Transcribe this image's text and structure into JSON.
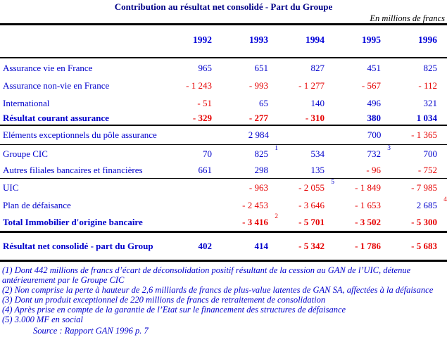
{
  "title": "Contribution au résultat net consolidé - Part du Groupe",
  "unit_label": "En millions de francs",
  "colors": {
    "title": "#000087",
    "blue": "#0000CC",
    "red": "#E60000",
    "year_blue": "#0000D9",
    "rule": "#000000"
  },
  "table": {
    "years": [
      "1992",
      "1993",
      "1994",
      "1995",
      "1996"
    ],
    "rows": [
      {
        "label": "Assurance vie en France",
        "bold": false,
        "cells": [
          {
            "v": "965",
            "c": "pos"
          },
          {
            "v": "651",
            "c": "pos"
          },
          {
            "v": "827",
            "c": "pos"
          },
          {
            "v": "451",
            "c": "pos"
          },
          {
            "v": "825",
            "c": "pos"
          }
        ]
      },
      {
        "label": "Assurance non-vie en France",
        "bold": false,
        "cells": [
          {
            "v": "- 1 243",
            "c": "neg"
          },
          {
            "v": "- 993",
            "c": "neg"
          },
          {
            "v": "- 1 277",
            "c": "neg"
          },
          {
            "v": "- 567",
            "c": "neg"
          },
          {
            "v": "- 112",
            "c": "neg"
          }
        ]
      },
      {
        "label": "International",
        "bold": false,
        "cells": [
          {
            "v": "- 51",
            "c": "neg"
          },
          {
            "v": "65",
            "c": "pos"
          },
          {
            "v": "140",
            "c": "pos"
          },
          {
            "v": "496",
            "c": "pos"
          },
          {
            "v": "321",
            "c": "pos"
          }
        ]
      },
      {
        "label": "Résultat courant assurance",
        "bold": true,
        "divider_after": "medium",
        "cells": [
          {
            "v": "- 329",
            "c": "neg"
          },
          {
            "v": "- 277",
            "c": "neg"
          },
          {
            "v": "- 310",
            "c": "neg"
          },
          {
            "v": "380",
            "c": "pos"
          },
          {
            "v": "1 034",
            "c": "pos"
          }
        ]
      },
      {
        "label": "Eléments exceptionnels du pôle assurance",
        "bold": false,
        "divider_after": "thin",
        "cells": [
          {
            "v": "",
            "c": "pos"
          },
          {
            "v": "2 984",
            "c": "pos"
          },
          {
            "v": "",
            "c": "pos"
          },
          {
            "v": "700",
            "c": "pos"
          },
          {
            "v": "- 1 365",
            "c": "neg"
          }
        ]
      },
      {
        "label": "Groupe CIC",
        "bold": false,
        "cells": [
          {
            "v": "70",
            "c": "pos"
          },
          {
            "v": "825",
            "c": "pos",
            "sup": "1",
            "supc": "pos"
          },
          {
            "v": "534",
            "c": "pos"
          },
          {
            "v": "732",
            "c": "pos",
            "sup": "3",
            "supc": "pos"
          },
          {
            "v": "700",
            "c": "pos"
          }
        ]
      },
      {
        "label": "Autres filiales bancaires et financières",
        "bold": false,
        "divider_after": "thin",
        "cells": [
          {
            "v": "661",
            "c": "pos"
          },
          {
            "v": "298",
            "c": "pos"
          },
          {
            "v": "135",
            "c": "pos"
          },
          {
            "v": "- 96",
            "c": "neg"
          },
          {
            "v": "- 752",
            "c": "neg"
          }
        ]
      },
      {
        "label": "UIC",
        "bold": false,
        "cells": [
          {
            "v": "",
            "c": "pos"
          },
          {
            "v": "- 963",
            "c": "neg"
          },
          {
            "v": "- 2 055",
            "c": "neg",
            "sup": "5",
            "supc": "pos"
          },
          {
            "v": "- 1 849",
            "c": "neg"
          },
          {
            "v": "- 7 985",
            "c": "neg"
          }
        ]
      },
      {
        "label": "Plan de défaisance",
        "bold": false,
        "cells": [
          {
            "v": "",
            "c": "pos"
          },
          {
            "v": "- 2 453",
            "c": "neg"
          },
          {
            "v": "- 3 646",
            "c": "neg"
          },
          {
            "v": "- 1 653",
            "c": "neg"
          },
          {
            "v": "2 685",
            "c": "pos",
            "sup": "4",
            "supc": "neg"
          }
        ]
      },
      {
        "label": "Total Immobilier d'origine bancaire",
        "bold": true,
        "divider_after": "thick",
        "cells": [
          {
            "v": "",
            "c": "pos"
          },
          {
            "v": "- 3 416",
            "c": "neg",
            "sup": "2",
            "supc": "neg"
          },
          {
            "v": "- 5 701",
            "c": "neg"
          },
          {
            "v": "- 3 502",
            "c": "neg"
          },
          {
            "v": "- 5 300",
            "c": "neg"
          }
        ]
      },
      {
        "label": "Résultat net consolidé - part du Group",
        "bold": true,
        "divider_after": "thick",
        "cells": [
          {
            "v": "402",
            "c": "pos"
          },
          {
            "v": "414",
            "c": "pos"
          },
          {
            "v": "- 5 342",
            "c": "neg"
          },
          {
            "v": "- 1 786",
            "c": "neg"
          },
          {
            "v": "- 5 683",
            "c": "neg"
          }
        ]
      }
    ]
  },
  "footnotes": [
    "(1) Dont 442 millions de francs d’écart de déconsolidation positif résultant de la cession au GAN de l’UIC, détenue antérieurement par le Groupe CIC",
    "(2) Non comprise la perte à hauteur de 2,6 milliards de francs de plus-value latentes de GAN SA, affectées à la défaisance",
    "(3) Dont un produit exceptionnel de 220 millions de francs de retraitement de consolidation",
    "(4) Après prise en compte de la garantie de l’Etat sur le financement des structures de défaisance",
    "(5) 3.000 MF en social"
  ],
  "source": "Source : Rapport GAN 1996 p. 7"
}
